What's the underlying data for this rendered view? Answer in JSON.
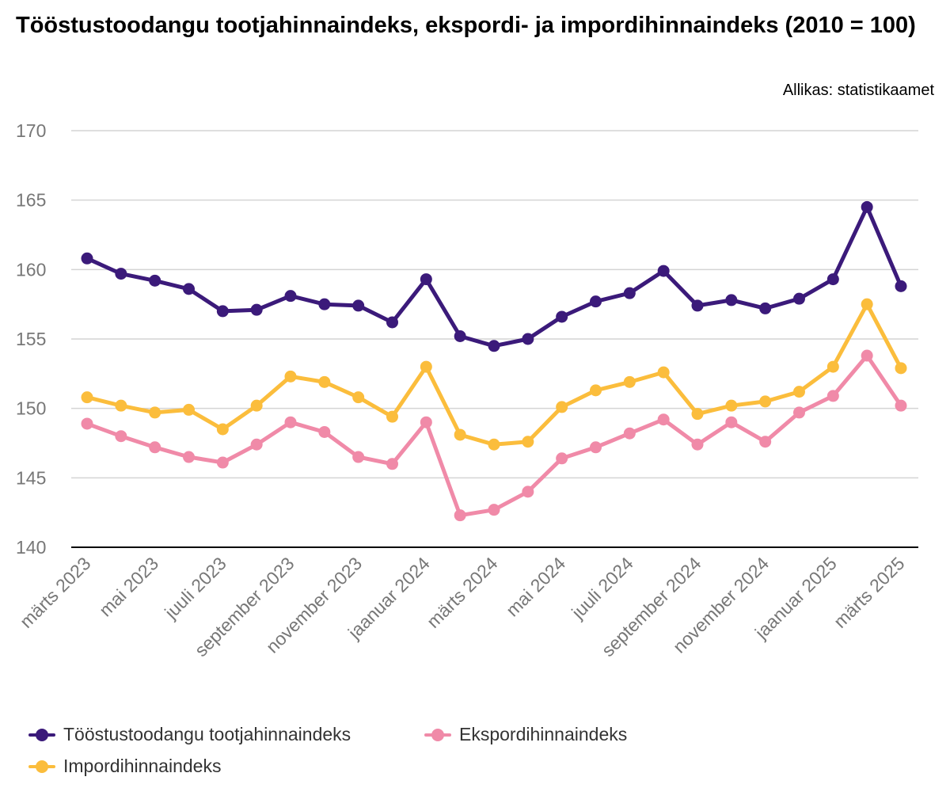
{
  "chart_data": {
    "type": "line",
    "title": "Tööstustoodangu tootjahinnaindeks, ekspordi- ja impordihinnaindeks (2010 = 100)",
    "source": "Allikas: statistikaamet",
    "ylim": [
      140,
      170
    ],
    "yticks": [
      140,
      145,
      150,
      155,
      160,
      165,
      170
    ],
    "grid": true,
    "legend_position": "bottom-left",
    "x": [
      "2023-03",
      "2023-04",
      "2023-05",
      "2023-06",
      "2023-07",
      "2023-08",
      "2023-09",
      "2023-10",
      "2023-11",
      "2023-12",
      "2024-01",
      "2024-02",
      "2024-03",
      "2024-04",
      "2024-05",
      "2024-06",
      "2024-07",
      "2024-08",
      "2024-09",
      "2024-10",
      "2024-11",
      "2024-12",
      "2025-01",
      "2025-02",
      "2025-03"
    ],
    "x_tick_labels": [
      "märts 2023",
      "mai 2023",
      "juuli 2023",
      "september 2023",
      "november 2023",
      "jaanuar 2024",
      "märts 2024",
      "mai 2024",
      "juuli 2024",
      "september 2024",
      "november 2024",
      "jaanuar 2025",
      "märts 2025"
    ],
    "series": [
      {
        "name": "Tööstustoodangu tootjahinnaindeks",
        "color": "#3b1a7a",
        "values": [
          160.8,
          159.7,
          159.2,
          158.6,
          157.0,
          157.1,
          158.1,
          157.5,
          157.4,
          156.2,
          159.3,
          155.2,
          154.5,
          155.0,
          156.6,
          157.7,
          158.3,
          159.9,
          157.4,
          157.8,
          157.2,
          157.9,
          159.3,
          164.5,
          158.8
        ]
      },
      {
        "name": "Ekspordihinnaindeks",
        "color": "#f08aa8",
        "values": [
          148.9,
          148.0,
          147.2,
          146.5,
          146.1,
          147.4,
          149.0,
          148.3,
          146.5,
          146.0,
          149.0,
          142.3,
          142.7,
          144.0,
          146.4,
          147.2,
          148.2,
          149.2,
          147.4,
          149.0,
          147.6,
          149.7,
          150.9,
          153.8,
          150.2
        ]
      },
      {
        "name": "Impordihinnaindeks",
        "color": "#fbbd3c",
        "values": [
          150.8,
          150.2,
          149.7,
          149.9,
          148.5,
          150.2,
          152.3,
          151.9,
          150.8,
          149.4,
          153.0,
          148.1,
          147.4,
          147.6,
          150.1,
          151.3,
          151.9,
          152.6,
          149.6,
          150.2,
          150.5,
          151.2,
          153.0,
          157.5,
          152.9
        ]
      }
    ]
  }
}
